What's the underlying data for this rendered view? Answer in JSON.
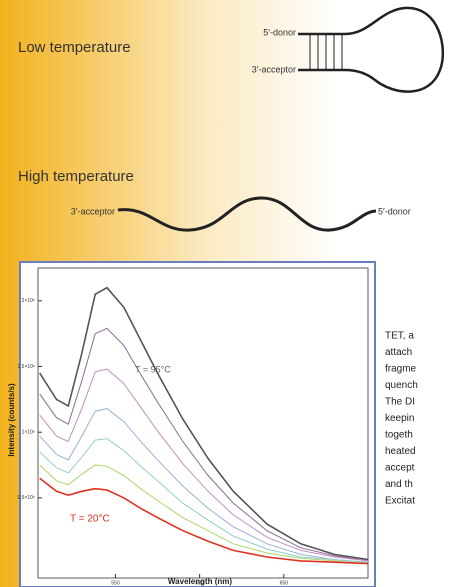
{
  "diagram": {
    "low_label": "Low temperature",
    "low_donor": "5′-donor",
    "low_acceptor": "3′-acceptor",
    "high_label": "High temperature",
    "high_acceptor": "3′-acceptor",
    "high_donor": "5′-donor"
  },
  "chart_data": {
    "type": "line",
    "x_label": "Wavelength (nm)",
    "y_label": "Intensity (counts/s)",
    "annotations": [
      {
        "text": "T = 95°C",
        "color": "#666666"
      },
      {
        "text": "T = 20°C",
        "color": "#e03020"
      }
    ],
    "x": [
      505,
      515,
      522,
      530,
      538,
      545,
      555,
      565,
      575,
      590,
      605,
      620,
      640,
      660,
      680,
      700
    ],
    "xlim": [
      504,
      700
    ],
    "xticks": [
      550,
      600,
      650
    ],
    "ylim": [
      -110000,
      2250000
    ],
    "yticks": [
      {
        "value": 500000,
        "label": "0.5×10⁶"
      },
      {
        "value": 1000000,
        "label": "1×10⁶"
      },
      {
        "value": 1500000,
        "label": "1.5×10⁶"
      },
      {
        "value": 2000000,
        "label": "2×10⁶"
      }
    ],
    "series": [
      {
        "color": "#555555",
        "values": [
          1450000,
          1250000,
          1200000,
          1600000,
          2050000,
          2100000,
          1950000,
          1700000,
          1450000,
          1100000,
          800000,
          550000,
          300000,
          150000,
          70000,
          30000
        ]
      },
      {
        "color": "#8a6a9a",
        "values": [
          1290000,
          1110000,
          1060000,
          1390000,
          1750000,
          1790000,
          1660000,
          1440000,
          1230000,
          930000,
          670000,
          460000,
          250000,
          120000,
          60000,
          20000
        ]
      },
      {
        "color": "#c48fc0",
        "values": [
          1130000,
          970000,
          930000,
          1180000,
          1460000,
          1480000,
          1370000,
          1190000,
          1010000,
          760000,
          550000,
          370000,
          200000,
          100000,
          50000,
          20000
        ]
      },
      {
        "color": "#9ab0d8",
        "values": [
          970000,
          830000,
          790000,
          970000,
          1160000,
          1180000,
          1080000,
          930000,
          790000,
          590000,
          420000,
          280000,
          150000,
          70000,
          30000,
          10000
        ]
      },
      {
        "color": "#8fd0c8",
        "values": [
          850000,
          730000,
          690000,
          810000,
          940000,
          950000,
          860000,
          740000,
          630000,
          460000,
          330000,
          210000,
          110000,
          50000,
          30000,
          10000
        ]
      },
      {
        "color": "#a8d86a",
        "values": [
          750000,
          630000,
          600000,
          680000,
          750000,
          740000,
          670000,
          570000,
          480000,
          350000,
          250000,
          150000,
          80000,
          40000,
          20000,
          0
        ]
      },
      {
        "color": "#e03020",
        "values": [
          650000,
          550000,
          520000,
          550000,
          570000,
          560000,
          500000,
          420000,
          350000,
          250000,
          170000,
          100000,
          50000,
          20000,
          10000,
          0
        ]
      }
    ]
  },
  "caption": {
    "lines": [
      "TET, a",
      "attach",
      "fragme",
      "quench",
      "The DI",
      "keepin",
      "togeth",
      "heated",
      "accept",
      "and th",
      "Excitat"
    ]
  }
}
